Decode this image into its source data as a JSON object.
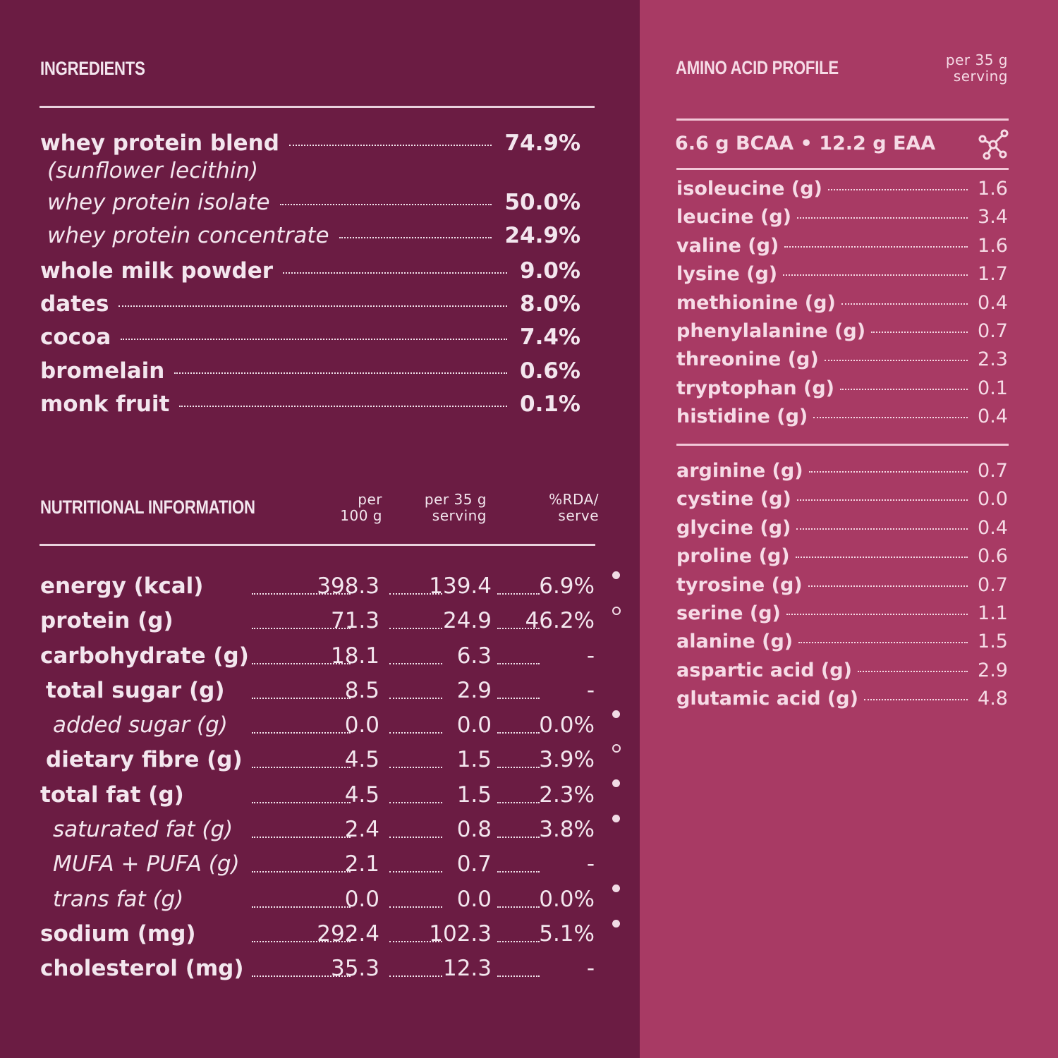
{
  "ingredients": {
    "title": "INGREDIENTS",
    "items": [
      {
        "label": "whey protein blend",
        "value": "74.9%"
      },
      {
        "label": "whey protein isolate",
        "value": "50.0%"
      },
      {
        "label": "whey protein concentrate",
        "value": "24.9%"
      },
      {
        "label": "whole milk powder",
        "value": "9.0%"
      },
      {
        "label": "dates",
        "value": "8.0%"
      },
      {
        "label": "cocoa",
        "value": "7.4%"
      },
      {
        "label": "bromelain",
        "value": "0.6%"
      },
      {
        "label": "monk fruit",
        "value": "0.1%"
      }
    ],
    "blend_note": "(sunflower lecithin)"
  },
  "nutrition": {
    "title": "NUTRITIONAL INFORMATION",
    "col_per100": "per\n100 g",
    "col_per35": "per 35 g\nserving",
    "col_rda": "%RDA/\nserve",
    "rows": [
      {
        "label": "energy (kcal)",
        "per100": "398.3",
        "per35": "139.4",
        "rda": "6.9%"
      },
      {
        "label": "protein (g)",
        "per100": "71.3",
        "per35": "24.9",
        "rda": "46.2%"
      },
      {
        "label": "carbohydrate (g)",
        "per100": "18.1",
        "per35": "6.3",
        "rda": "-"
      },
      {
        "label": "total sugar (g)",
        "per100": "8.5",
        "per35": "2.9",
        "rda": "-"
      },
      {
        "label": "added sugar (g)",
        "per100": "0.0",
        "per35": "0.0",
        "rda": "0.0%"
      },
      {
        "label": "dietary fibre (g)",
        "per100": "4.5",
        "per35": "1.5",
        "rda": "3.9%"
      },
      {
        "label": "total fat (g)",
        "per100": "4.5",
        "per35": "1.5",
        "rda": "2.3%"
      },
      {
        "label": "saturated fat (g)",
        "per100": "2.4",
        "per35": "0.8",
        "rda": "3.8%"
      },
      {
        "label": "MUFA + PUFA (g)",
        "per100": "2.1",
        "per35": "0.7",
        "rda": "-"
      },
      {
        "label": "trans fat (g)",
        "per100": "0.0",
        "per35": "0.0",
        "rda": "0.0%"
      },
      {
        "label": "sodium (mg)",
        "per100": "292.4",
        "per35": "102.3",
        "rda": "5.1%"
      },
      {
        "label": "cholesterol (mg)",
        "per100": "35.3",
        "per35": "12.3",
        "rda": "-"
      }
    ]
  },
  "amino": {
    "title": "AMINO ACID PROFILE",
    "serving_note": "per 35 g\nserving",
    "bcaa_line": "6.6 g BCAA  •  12.2 g EAA",
    "icon": "molecule-icon",
    "essential": [
      {
        "label": "isoleucine (g)",
        "value": "1.6"
      },
      {
        "label": "leucine (g)",
        "value": "3.4"
      },
      {
        "label": "valine (g)",
        "value": "1.6"
      },
      {
        "label": "lysine (g)",
        "value": "1.7"
      },
      {
        "label": "methionine (g)",
        "value": "0.4"
      },
      {
        "label": "phenylalanine (g)",
        "value": "0.7"
      },
      {
        "label": "threonine (g)",
        "value": "2.3"
      },
      {
        "label": "tryptophan (g)",
        "value": "0.1"
      },
      {
        "label": "histidine (g)",
        "value": "0.4"
      }
    ],
    "nonessential": [
      {
        "label": "arginine  (g)",
        "value": "0.7"
      },
      {
        "label": "cystine (g)",
        "value": "0.0"
      },
      {
        "label": "glycine  (g)",
        "value": "0.4"
      },
      {
        "label": "proline  (g)",
        "value": "0.6"
      },
      {
        "label": "tyrosine (g)",
        "value": "0.7"
      },
      {
        "label": "serine   (g)",
        "value": "1.1"
      },
      {
        "label": "alanine (g)",
        "value": "1.5"
      },
      {
        "label": "aspartic acid  (g)",
        "value": "2.9"
      },
      {
        "label": "glutamic acid (g)",
        "value": "4.8"
      }
    ]
  },
  "colors": {
    "left_bg": "#6b1c43",
    "right_bg": "#a83a64",
    "text_light": "#f3e6ee"
  }
}
